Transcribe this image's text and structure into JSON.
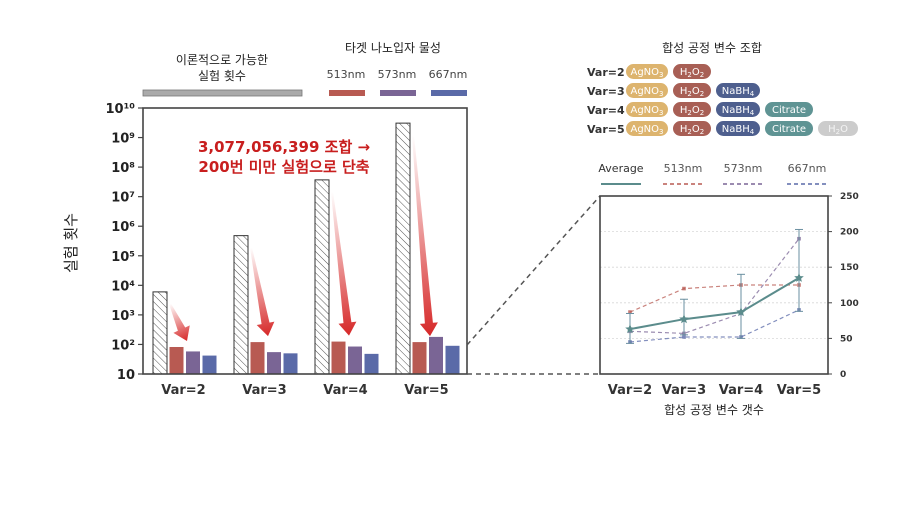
{
  "legend_left": {
    "theory_line1": "이론적으로 가능한",
    "theory_line2": "실험 횟수",
    "target_title": "타겟 나노입자 물성",
    "wl": [
      "513nm",
      "573nm",
      "667nm"
    ]
  },
  "annotation": {
    "line1": "3,077,056,399 조합 →",
    "line2": "200번 미만 실험으로 단축"
  },
  "var_legend": {
    "title": "합성 공정 변수 조합",
    "rows": [
      {
        "label": "Var=2",
        "chips": [
          "AgNO3",
          "H2O2"
        ]
      },
      {
        "label": "Var=3",
        "chips": [
          "AgNO3",
          "H2O2",
          "NaBH4"
        ]
      },
      {
        "label": "Var=4",
        "chips": [
          "AgNO3",
          "H2O2",
          "NaBH4",
          "Citrate"
        ]
      },
      {
        "label": "Var=5",
        "chips": [
          "AgNO3",
          "H2O2",
          "NaBH4",
          "Citrate",
          "H2O"
        ]
      }
    ]
  },
  "colors": {
    "theory": "#999999",
    "nm513": "#b85a52",
    "nm573": "#7a6595",
    "nm667": "#5a6aa8",
    "average": "#5b8c8c",
    "AgNO3": "#ddb46e",
    "H2O2": "#a85f55",
    "NaBH4": "#4e5f8e",
    "Citrate": "#5f9494",
    "H2O": "#cccccc"
  },
  "chart_data": [
    {
      "type": "bar",
      "ylabel": "실험 횟수",
      "yscale": "log",
      "ylim": [
        10,
        10000000000
      ],
      "yticks": [
        "10",
        "10²",
        "10³",
        "10⁴",
        "10⁵",
        "10⁶",
        "10⁷",
        "10⁸",
        "10⁹",
        "10¹⁰"
      ],
      "categories": [
        "Var=2",
        "Var=3",
        "Var=4",
        "Var=5"
      ],
      "series": [
        {
          "name": "이론적으로 가능한 실험 횟수",
          "values": [
            6000,
            480000,
            37000000,
            3077056399
          ]
        },
        {
          "name": "513nm",
          "values": [
            82,
            120,
            125,
            120
          ]
        },
        {
          "name": "573nm",
          "values": [
            58,
            55,
            85,
            180
          ]
        },
        {
          "name": "667nm",
          "values": [
            42,
            50,
            48,
            90
          ]
        }
      ]
    },
    {
      "type": "line",
      "xlabel": "합성 공정 변수 갯수",
      "categories": [
        "Var=2",
        "Var=3",
        "Var=4",
        "Var=5"
      ],
      "ylim": [
        0,
        250
      ],
      "yticks": [
        0,
        50,
        100,
        150,
        200,
        250
      ],
      "series": [
        {
          "name": "Average",
          "values": [
            63,
            77,
            87,
            135
          ],
          "err_low": [
            43,
            55,
            50,
            88
          ],
          "err_high": [
            85,
            105,
            140,
            203
          ]
        },
        {
          "name": "513nm",
          "values": [
            87,
            120,
            125,
            125
          ]
        },
        {
          "name": "573nm",
          "values": [
            60,
            57,
            85,
            190
          ]
        },
        {
          "name": "667nm",
          "values": [
            45,
            52,
            52,
            90
          ]
        }
      ]
    }
  ]
}
